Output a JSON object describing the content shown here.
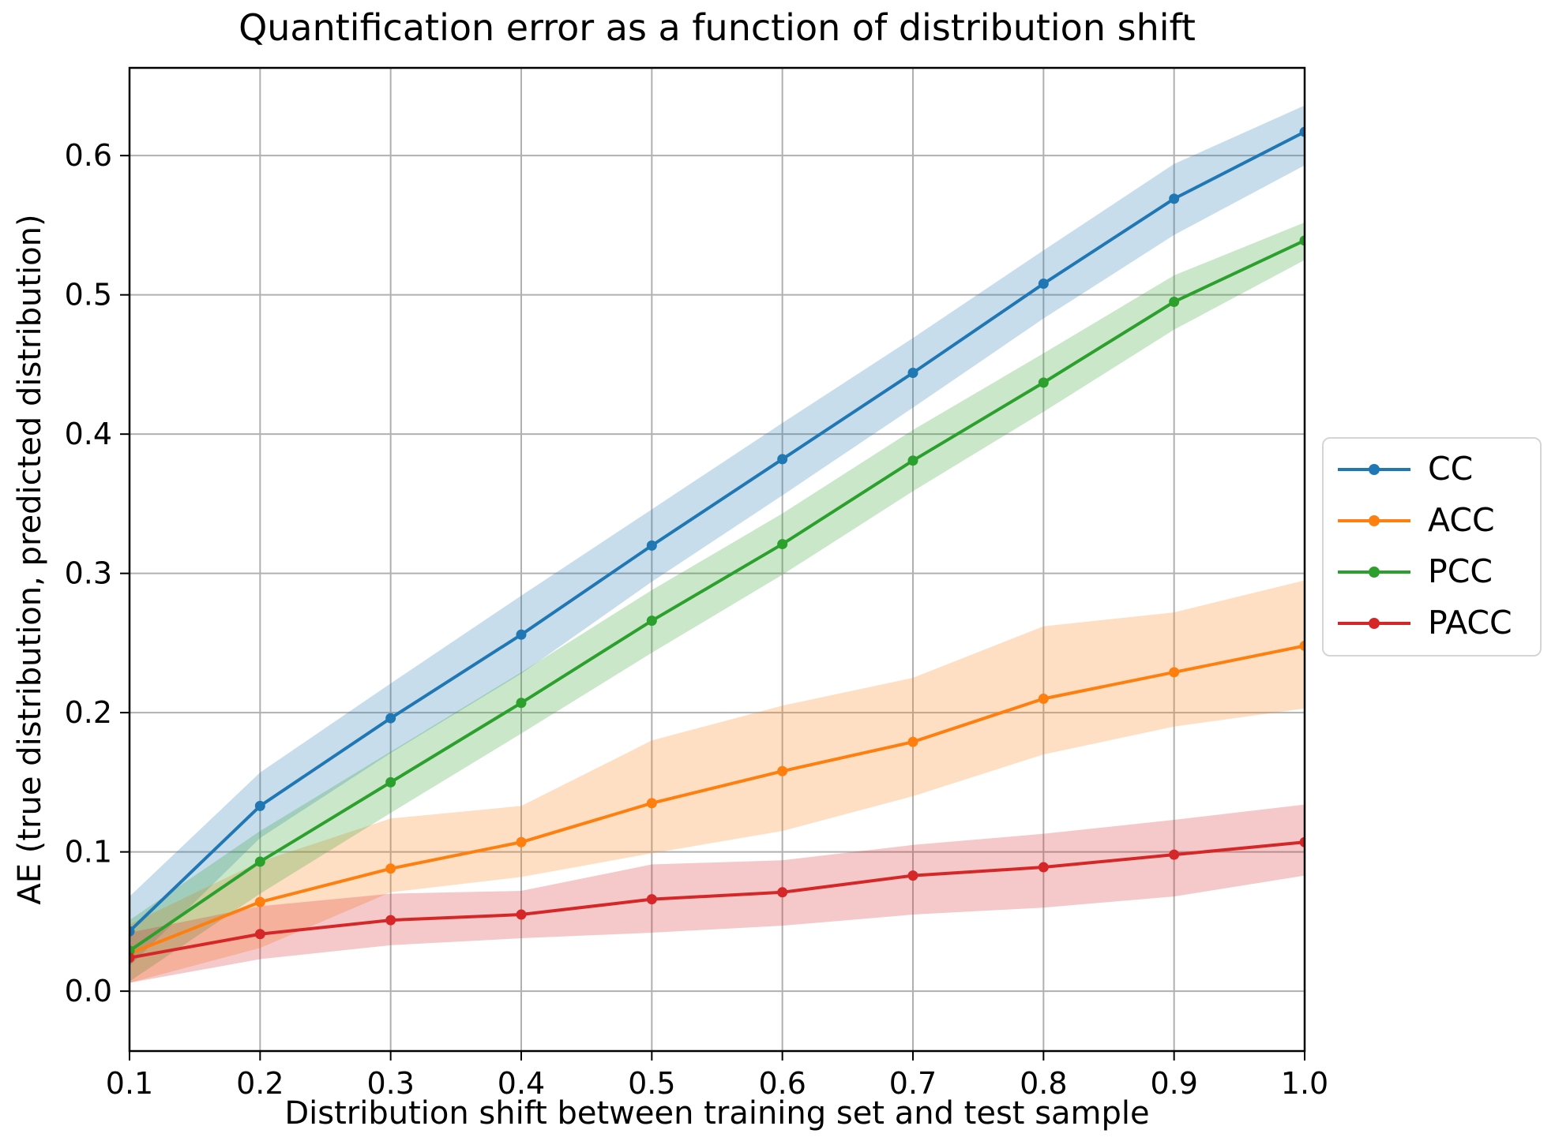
{
  "chart_data": {
    "type": "line",
    "title": "Quantification error as a function of distribution shift",
    "xlabel": "Distribution shift between training set and test sample",
    "ylabel": "AE (true distribution, predicted distribution)",
    "x": [
      0.1,
      0.2,
      0.3,
      0.4,
      0.5,
      0.6,
      0.7,
      0.8,
      0.9,
      1.0
    ],
    "x_tick_labels": [
      "0.1",
      "0.2",
      "0.3",
      "0.4",
      "0.5",
      "0.6",
      "0.7",
      "0.8",
      "0.9",
      "1.0"
    ],
    "y_ticks": [
      0.0,
      0.1,
      0.2,
      0.3,
      0.4,
      0.5,
      0.6
    ],
    "y_tick_labels": [
      "0.0",
      "0.1",
      "0.2",
      "0.3",
      "0.4",
      "0.5",
      "0.6"
    ],
    "xlim": [
      0.1,
      1.0
    ],
    "ylim": [
      -0.043,
      0.663
    ],
    "grid": true,
    "grid_color": "#b0b0b0",
    "axis_color": "#000000",
    "background": "#ffffff",
    "band_opacity": 0.25,
    "legend_position": "right of axes, outside",
    "series": [
      {
        "name": "CC",
        "color": "#1f77b4",
        "values": [
          0.043,
          0.133,
          0.196,
          0.256,
          0.32,
          0.382,
          0.444,
          0.508,
          0.569,
          0.617
        ],
        "band_lo": [
          0.018,
          0.11,
          0.171,
          0.228,
          0.294,
          0.356,
          0.419,
          0.483,
          0.543,
          0.593
        ],
        "band_hi": [
          0.068,
          0.157,
          0.221,
          0.284,
          0.346,
          0.408,
          0.469,
          0.532,
          0.594,
          0.636
        ]
      },
      {
        "name": "ACC",
        "color": "#ff7f0e",
        "values": [
          0.027,
          0.064,
          0.088,
          0.107,
          0.135,
          0.158,
          0.179,
          0.21,
          0.229,
          0.248
        ],
        "band_lo": [
          0.006,
          0.031,
          0.071,
          0.082,
          0.099,
          0.115,
          0.14,
          0.17,
          0.19,
          0.203
        ],
        "band_hi": [
          0.048,
          0.093,
          0.124,
          0.133,
          0.18,
          0.205,
          0.225,
          0.262,
          0.272,
          0.295
        ]
      },
      {
        "name": "PCC",
        "color": "#2ca02c",
        "values": [
          0.029,
          0.093,
          0.15,
          0.207,
          0.266,
          0.321,
          0.381,
          0.437,
          0.495,
          0.539
        ],
        "band_lo": [
          0.007,
          0.07,
          0.128,
          0.185,
          0.243,
          0.299,
          0.359,
          0.416,
          0.475,
          0.525
        ],
        "band_hi": [
          0.051,
          0.115,
          0.172,
          0.229,
          0.288,
          0.343,
          0.403,
          0.458,
          0.514,
          0.552
        ]
      },
      {
        "name": "PACC",
        "color": "#d62728",
        "values": [
          0.024,
          0.041,
          0.051,
          0.055,
          0.066,
          0.071,
          0.083,
          0.089,
          0.098,
          0.107
        ],
        "band_lo": [
          0.006,
          0.023,
          0.033,
          0.038,
          0.042,
          0.047,
          0.055,
          0.06,
          0.068,
          0.083
        ],
        "band_hi": [
          0.042,
          0.061,
          0.07,
          0.072,
          0.091,
          0.094,
          0.105,
          0.113,
          0.123,
          0.134
        ]
      }
    ]
  }
}
